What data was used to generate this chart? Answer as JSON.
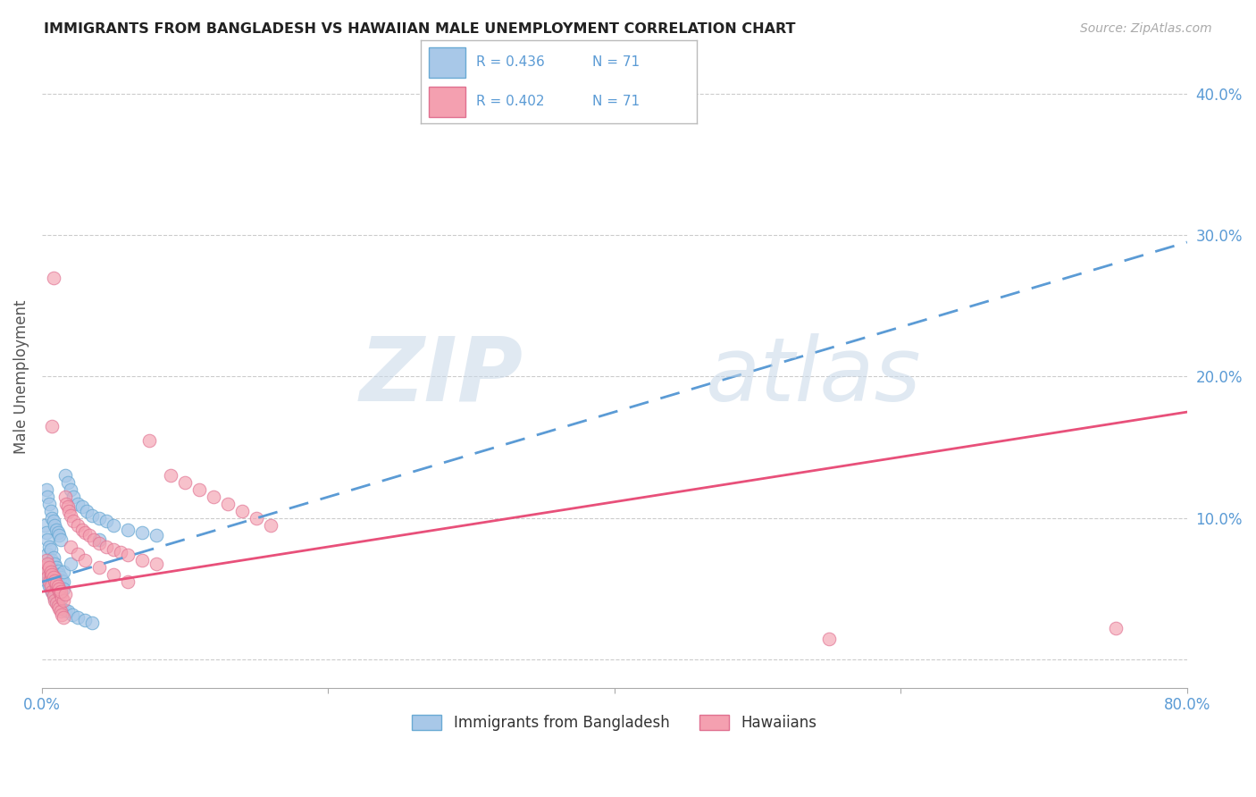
{
  "title": "IMMIGRANTS FROM BANGLADESH VS HAWAIIAN MALE UNEMPLOYMENT CORRELATION CHART",
  "source": "Source: ZipAtlas.com",
  "ylabel": "Male Unemployment",
  "legend_blue_label": "Immigrants from Bangladesh",
  "legend_pink_label": "Hawaiians",
  "blue_color": "#A8C8E8",
  "pink_color": "#F4A0B0",
  "blue_edge_color": "#6AAAD4",
  "pink_edge_color": "#E07090",
  "blue_line_color": "#5B9BD5",
  "pink_line_color": "#E8507A",
  "axis_color": "#5B9BD5",
  "grid_color": "#CCCCCC",
  "watermark_zip": "ZIP",
  "watermark_atlas": "atlas",
  "xlim": [
    0.0,
    0.8
  ],
  "ylim": [
    -0.02,
    0.42
  ],
  "yticks_right": [
    0.0,
    0.1,
    0.2,
    0.3,
    0.4
  ],
  "blue_trend": [
    0.0,
    0.055,
    0.8,
    0.295
  ],
  "pink_trend": [
    0.0,
    0.048,
    0.8,
    0.175
  ],
  "blue_scatter_x": [
    0.002,
    0.003,
    0.004,
    0.004,
    0.005,
    0.005,
    0.006,
    0.006,
    0.007,
    0.007,
    0.008,
    0.008,
    0.009,
    0.009,
    0.01,
    0.01,
    0.011,
    0.011,
    0.012,
    0.012,
    0.013,
    0.013,
    0.014,
    0.015,
    0.015,
    0.003,
    0.004,
    0.005,
    0.006,
    0.007,
    0.008,
    0.009,
    0.01,
    0.011,
    0.012,
    0.013,
    0.016,
    0.018,
    0.02,
    0.022,
    0.025,
    0.028,
    0.031,
    0.035,
    0.04,
    0.045,
    0.05,
    0.06,
    0.07,
    0.08,
    0.002,
    0.003,
    0.004,
    0.005,
    0.006,
    0.007,
    0.008,
    0.009,
    0.01,
    0.011,
    0.012,
    0.014,
    0.016,
    0.018,
    0.021,
    0.025,
    0.03,
    0.035,
    0.015,
    0.02,
    0.04
  ],
  "blue_scatter_y": [
    0.095,
    0.09,
    0.085,
    0.075,
    0.08,
    0.068,
    0.078,
    0.065,
    0.07,
    0.06,
    0.072,
    0.055,
    0.068,
    0.05,
    0.065,
    0.048,
    0.063,
    0.058,
    0.06,
    0.053,
    0.058,
    0.052,
    0.056,
    0.055,
    0.05,
    0.12,
    0.115,
    0.11,
    0.105,
    0.1,
    0.098,
    0.095,
    0.092,
    0.09,
    0.088,
    0.085,
    0.13,
    0.125,
    0.12,
    0.115,
    0.11,
    0.108,
    0.105,
    0.102,
    0.1,
    0.098,
    0.095,
    0.092,
    0.09,
    0.088,
    0.06,
    0.058,
    0.055,
    0.052,
    0.05,
    0.048,
    0.046,
    0.044,
    0.042,
    0.04,
    0.038,
    0.036,
    0.035,
    0.034,
    0.032,
    0.03,
    0.028,
    0.026,
    0.062,
    0.068,
    0.085
  ],
  "pink_scatter_x": [
    0.002,
    0.003,
    0.004,
    0.005,
    0.006,
    0.006,
    0.007,
    0.007,
    0.008,
    0.008,
    0.009,
    0.009,
    0.01,
    0.01,
    0.011,
    0.011,
    0.012,
    0.012,
    0.013,
    0.013,
    0.014,
    0.014,
    0.015,
    0.015,
    0.016,
    0.017,
    0.018,
    0.019,
    0.02,
    0.022,
    0.025,
    0.028,
    0.03,
    0.033,
    0.036,
    0.04,
    0.045,
    0.05,
    0.055,
    0.06,
    0.07,
    0.08,
    0.09,
    0.1,
    0.11,
    0.12,
    0.13,
    0.14,
    0.15,
    0.16,
    0.003,
    0.004,
    0.005,
    0.006,
    0.007,
    0.008,
    0.009,
    0.01,
    0.011,
    0.012,
    0.013,
    0.016,
    0.02,
    0.025,
    0.03,
    0.04,
    0.05,
    0.06,
    0.075,
    0.55,
    0.75
  ],
  "pink_scatter_y": [
    0.065,
    0.062,
    0.058,
    0.055,
    0.052,
    0.06,
    0.048,
    0.165,
    0.045,
    0.27,
    0.042,
    0.058,
    0.04,
    0.052,
    0.038,
    0.05,
    0.036,
    0.048,
    0.034,
    0.046,
    0.032,
    0.044,
    0.03,
    0.042,
    0.115,
    0.11,
    0.108,
    0.105,
    0.102,
    0.098,
    0.095,
    0.092,
    0.09,
    0.088,
    0.085,
    0.082,
    0.08,
    0.078,
    0.076,
    0.074,
    0.07,
    0.068,
    0.13,
    0.125,
    0.12,
    0.115,
    0.11,
    0.105,
    0.1,
    0.095,
    0.07,
    0.068,
    0.065,
    0.062,
    0.06,
    0.058,
    0.056,
    0.054,
    0.052,
    0.05,
    0.048,
    0.046,
    0.08,
    0.075,
    0.07,
    0.065,
    0.06,
    0.055,
    0.155,
    0.015,
    0.022
  ]
}
